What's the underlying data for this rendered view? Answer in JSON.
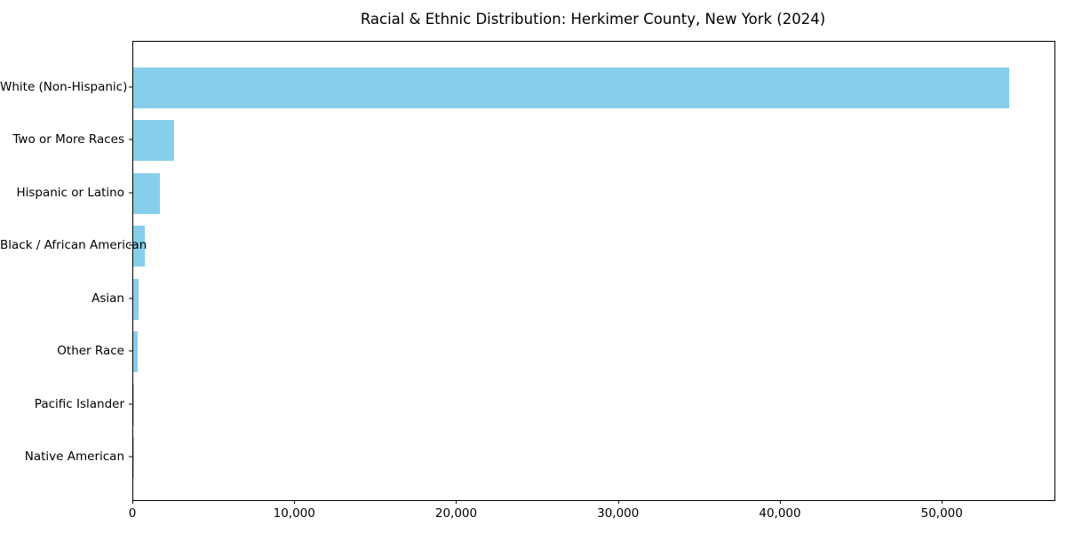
{
  "chart_data": {
    "type": "bar",
    "orientation": "horizontal",
    "title": "Racial & Ethnic Distribution: Herkimer County, New York (2024)",
    "categories": [
      "White (Non-Hispanic)",
      "Two or More Races",
      "Hispanic or Latino",
      "Black / African American",
      "Asian",
      "Other Race",
      "Pacific Islander",
      "Native American"
    ],
    "values": [
      54100,
      2500,
      1650,
      710,
      340,
      265,
      25,
      10
    ],
    "xlabel": "",
    "ylabel": "",
    "xlim": [
      0,
      56900
    ],
    "xticks": [
      0,
      10000,
      20000,
      30000,
      40000,
      50000
    ],
    "xtick_labels": [
      "0",
      "10,000",
      "20,000",
      "30,000",
      "40,000",
      "50,000"
    ],
    "grid": false,
    "legend": null,
    "bar_color": "#87CEEB",
    "frame_color": "#000000",
    "text_color": "#000000",
    "background_color": "#ffffff"
  }
}
